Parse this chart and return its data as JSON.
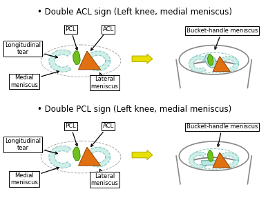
{
  "title1": "Double ACL sign (Left knee, medial meniscus)",
  "title2": "Double PCL sign (Left knee, medial meniscus)",
  "label_pcl": "PCL",
  "label_acl": "ACL",
  "label_bucket": "Bucket-handle meniscus",
  "label_long_tear": "Longitudinal\ntear",
  "label_medial": "Medial\nmeniscus",
  "label_lateral": "Lateral\nmeniscus",
  "color_orange": "#E07010",
  "color_green": "#70C020",
  "color_lightblue": "#B8E8E0",
  "color_meniscus_fill": "#D0EEE8",
  "color_dashed": "#80C8C0",
  "color_bowl_edge": "#888888",
  "color_yellow": "#E8E000",
  "color_yellow_edge": "#B8B000",
  "bg_color": "#FFFFFF",
  "font_size_title": 8.5,
  "font_size_box": 6.0
}
